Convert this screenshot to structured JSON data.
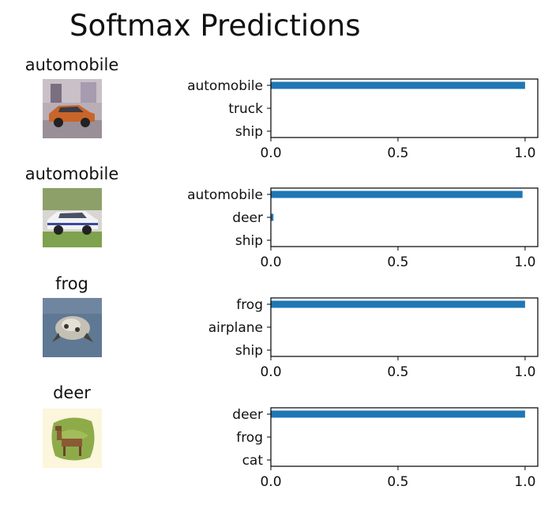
{
  "figure": {
    "title": "Softmax Predictions"
  },
  "rows": [
    {
      "image_title": "automobile",
      "image_desc": "orange car"
    },
    {
      "image_title": "automobile",
      "image_desc": "white car"
    },
    {
      "image_title": "frog",
      "image_desc": "frog on blue ground"
    },
    {
      "image_title": "deer",
      "image_desc": "deer on grass"
    }
  ],
  "colors": {
    "bar": "#1f77b4",
    "axis": "#000000"
  },
  "chart_data": [
    {
      "type": "bar",
      "orientation": "horizontal",
      "categories": [
        "automobile",
        "truck",
        "ship"
      ],
      "values": [
        1.0,
        0.0,
        0.0
      ],
      "xlim": [
        0,
        1.05
      ],
      "xticks": [
        "0.0",
        "0.5",
        "1.0"
      ]
    },
    {
      "type": "bar",
      "orientation": "horizontal",
      "categories": [
        "automobile",
        "deer",
        "ship"
      ],
      "values": [
        0.99,
        0.01,
        0.0
      ],
      "xlim": [
        0,
        1.05
      ],
      "xticks": [
        "0.0",
        "0.5",
        "1.0"
      ]
    },
    {
      "type": "bar",
      "orientation": "horizontal",
      "categories": [
        "frog",
        "airplane",
        "ship"
      ],
      "values": [
        1.0,
        0.0,
        0.0
      ],
      "xlim": [
        0,
        1.05
      ],
      "xticks": [
        "0.0",
        "0.5",
        "1.0"
      ]
    },
    {
      "type": "bar",
      "orientation": "horizontal",
      "categories": [
        "deer",
        "frog",
        "cat"
      ],
      "values": [
        1.0,
        0.0,
        0.0
      ],
      "xlim": [
        0,
        1.05
      ],
      "xticks": [
        "0.0",
        "0.5",
        "1.0"
      ]
    }
  ]
}
